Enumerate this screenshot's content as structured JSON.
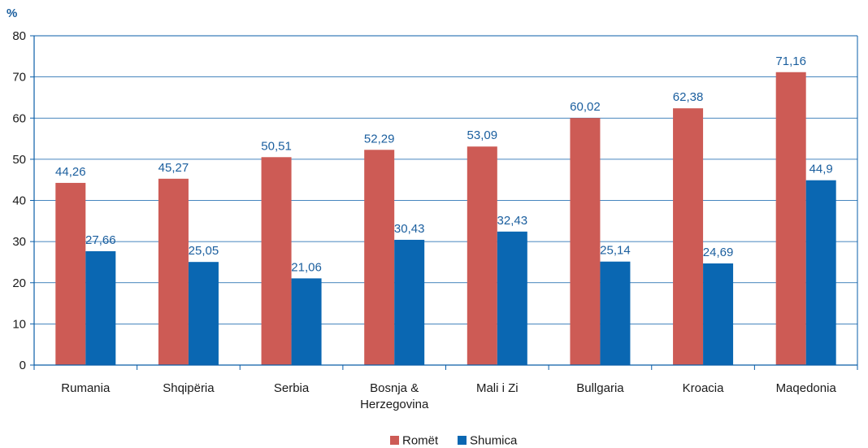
{
  "chart_data": {
    "type": "bar",
    "ylabel": "%",
    "ylim": [
      0,
      80
    ],
    "yticks": [
      "0",
      "10",
      "20",
      "30",
      "40",
      "50",
      "60",
      "70",
      "80"
    ],
    "grid": true,
    "legend_position": "bottom",
    "categories": [
      [
        "Rumania"
      ],
      [
        "Shqipëria"
      ],
      [
        "Serbia"
      ],
      [
        "Bosnja &",
        "Herzegovina"
      ],
      [
        "Mali i Zi"
      ],
      [
        "Bullgaria"
      ],
      [
        "Kroacia"
      ],
      [
        "Maqedonia"
      ]
    ],
    "series": [
      {
        "name": "Romët",
        "color": "#cd5b55",
        "values": [
          44.26,
          45.27,
          50.51,
          52.29,
          53.09,
          60.02,
          62.38,
          71.16
        ],
        "labels": [
          "44,26",
          "45,27",
          "50,51",
          "52,29",
          "53,09",
          "60,02",
          "62,38",
          "71,16"
        ]
      },
      {
        "name": "Shumica",
        "color": "#0a67b2",
        "values": [
          27.66,
          25.05,
          21.06,
          30.43,
          32.43,
          25.14,
          24.69,
          44.9
        ],
        "labels": [
          "27,66",
          "25,05",
          "21,06",
          "30,43",
          "32,43",
          "25,14",
          "24,69",
          "44,9"
        ]
      }
    ]
  }
}
